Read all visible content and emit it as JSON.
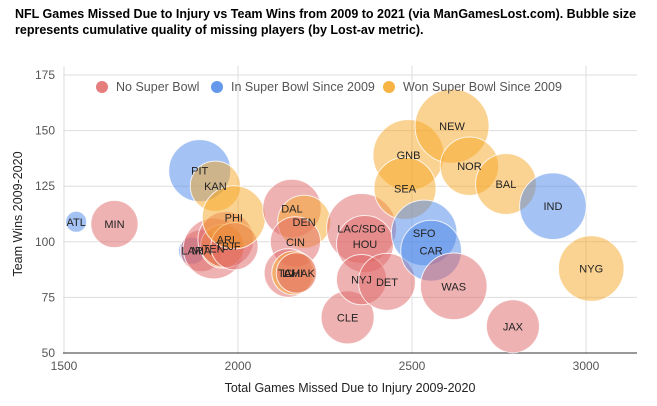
{
  "chart_data": {
    "type": "scatter",
    "title": "NFL Games Missed Due to Injury vs Team Wins from 2009 to 2021 (via ManGamesLost.com). Bubble size represents cumulative quality of missing players (by Lost-av metric).",
    "xlabel": "Total Games Missed Due to Injury 2009-2020",
    "ylabel": "Team Wins 2009-2020",
    "xlim": [
      1500,
      3150
    ],
    "ylim": [
      50,
      178
    ],
    "xticks": [
      1500,
      2000,
      2500,
      3000
    ],
    "yticks": [
      50,
      75,
      100,
      125,
      150,
      175
    ],
    "grid": true,
    "legend_position": "top-left",
    "bubble_size_metric": "Lost-av",
    "series": [
      {
        "name": "No Super Bowl",
        "color": "#e06666"
      },
      {
        "name": "In Super Bowl Since 2009",
        "color": "#4a86e8"
      },
      {
        "name": "Won Super Bowl Since 2009",
        "color": "#f6a623"
      }
    ],
    "points": [
      {
        "label": "ATL",
        "x": 1535,
        "y": 109,
        "size": 3,
        "series": 1
      },
      {
        "label": "MIN",
        "x": 1645,
        "y": 108,
        "size": 15,
        "series": 0
      },
      {
        "label": "PIT",
        "x": 1890,
        "y": 132,
        "size": 26,
        "series": 1
      },
      {
        "label": "KAN",
        "x": 1935,
        "y": 125,
        "size": 17,
        "series": 2
      },
      {
        "label": "LAR",
        "x": 1868,
        "y": 96,
        "size": 5,
        "series": 1
      },
      {
        "label": "MIA",
        "x": 1895,
        "y": 96,
        "size": 12,
        "series": 0
      },
      {
        "label": "TEN",
        "x": 1930,
        "y": 97,
        "size": 25,
        "series": 0
      },
      {
        "label": "TB",
        "x": 1955,
        "y": 98,
        "size": 13,
        "series": 2
      },
      {
        "label": "ARI",
        "x": 1965,
        "y": 101,
        "size": 21,
        "series": 0
      },
      {
        "label": "JF",
        "x": 1990,
        "y": 98,
        "size": 15,
        "series": 0
      },
      {
        "label": "PHI",
        "x": 1988,
        "y": 111,
        "size": 27,
        "series": 2
      },
      {
        "label": "DAL",
        "x": 2155,
        "y": 115,
        "size": 23,
        "series": 0
      },
      {
        "label": "DEN",
        "x": 2190,
        "y": 109,
        "size": 19,
        "series": 2
      },
      {
        "label": "CIN",
        "x": 2165,
        "y": 100,
        "size": 17,
        "series": 0
      },
      {
        "label": "LV",
        "x": 2145,
        "y": 86,
        "size": 16,
        "series": 0
      },
      {
        "label": "CHI",
        "x": 2160,
        "y": 86,
        "size": 13,
        "series": 2
      },
      {
        "label": "TAMAK",
        "x": 2168,
        "y": 86,
        "size": 11,
        "series": 0
      },
      {
        "label": "CLE",
        "x": 2315,
        "y": 66,
        "size": 19,
        "series": 0
      },
      {
        "label": "LAC/SDG",
        "x": 2355,
        "y": 106,
        "size": 33,
        "series": 0
      },
      {
        "label": "HOU",
        "x": 2365,
        "y": 99,
        "size": 22,
        "series": 0
      },
      {
        "label": "NYJ",
        "x": 2355,
        "y": 83,
        "size": 17,
        "series": 0
      },
      {
        "label": "DET",
        "x": 2428,
        "y": 82,
        "size": 22,
        "series": 0
      },
      {
        "label": "GNB",
        "x": 2490,
        "y": 139,
        "size": 34,
        "series": 2
      },
      {
        "label": "SEA",
        "x": 2480,
        "y": 124,
        "size": 26,
        "series": 2
      },
      {
        "label": "SFO",
        "x": 2535,
        "y": 104,
        "size": 29,
        "series": 1
      },
      {
        "label": "CAR",
        "x": 2555,
        "y": 96,
        "size": 25,
        "series": 1
      },
      {
        "label": "NEW",
        "x": 2615,
        "y": 152,
        "size": 37,
        "series": 2
      },
      {
        "label": "NOR",
        "x": 2665,
        "y": 134,
        "size": 23,
        "series": 2
      },
      {
        "label": "WAS",
        "x": 2620,
        "y": 80,
        "size": 30,
        "series": 0
      },
      {
        "label": "BAL",
        "x": 2770,
        "y": 126,
        "size": 25,
        "series": 2
      },
      {
        "label": "JAX",
        "x": 2790,
        "y": 62,
        "size": 19,
        "series": 0
      },
      {
        "label": "IND",
        "x": 2905,
        "y": 116,
        "size": 30,
        "series": 1
      },
      {
        "label": "NYG",
        "x": 3015,
        "y": 88,
        "size": 29,
        "series": 2
      }
    ]
  }
}
